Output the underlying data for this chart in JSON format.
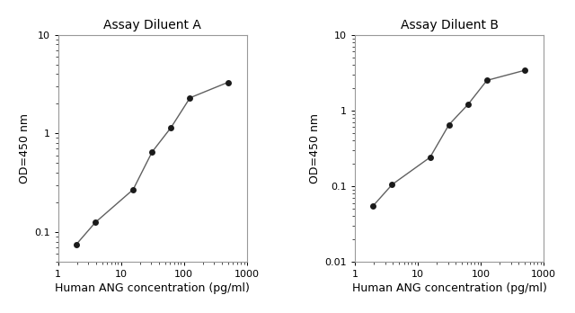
{
  "panel_A": {
    "title": "Assay Diluent A",
    "x": [
      1.95,
      3.9,
      15.6,
      31.25,
      62.5,
      125,
      500
    ],
    "y": [
      0.075,
      0.125,
      0.27,
      0.65,
      1.15,
      2.3,
      3.3
    ],
    "xlim": [
      1,
      1000
    ],
    "ylim": [
      0.05,
      10
    ],
    "yticks": [
      0.1,
      1,
      10
    ],
    "ytick_labels": [
      "0.1",
      "1",
      "10"
    ],
    "xticks": [
      1,
      10,
      100,
      1000
    ],
    "xtick_labels": [
      "1",
      "10",
      "100",
      "1000"
    ]
  },
  "panel_B": {
    "title": "Assay Diluent B",
    "x": [
      1.95,
      3.9,
      15.6,
      31.25,
      62.5,
      125,
      500
    ],
    "y": [
      0.055,
      0.105,
      0.24,
      0.65,
      1.2,
      2.5,
      3.4
    ],
    "xlim": [
      1,
      1000
    ],
    "ylim": [
      0.01,
      10
    ],
    "yticks": [
      0.01,
      0.1,
      1,
      10
    ],
    "ytick_labels": [
      "0.01",
      "0.1",
      "1",
      "10"
    ],
    "xticks": [
      1,
      10,
      100,
      1000
    ],
    "xtick_labels": [
      "1",
      "10",
      "100",
      "1000"
    ]
  },
  "xlabel": "Human ANG concentration (pg/ml)",
  "ylabel": "OD=450 nm",
  "line_color": "#606060",
  "marker_color": "#1a1a1a",
  "marker_size": 5,
  "line_width": 1.0,
  "title_fontsize": 10,
  "label_fontsize": 9,
  "tick_fontsize": 8,
  "text_color": "#000000",
  "bg_color": "#ffffff",
  "spine_color": "#999999"
}
